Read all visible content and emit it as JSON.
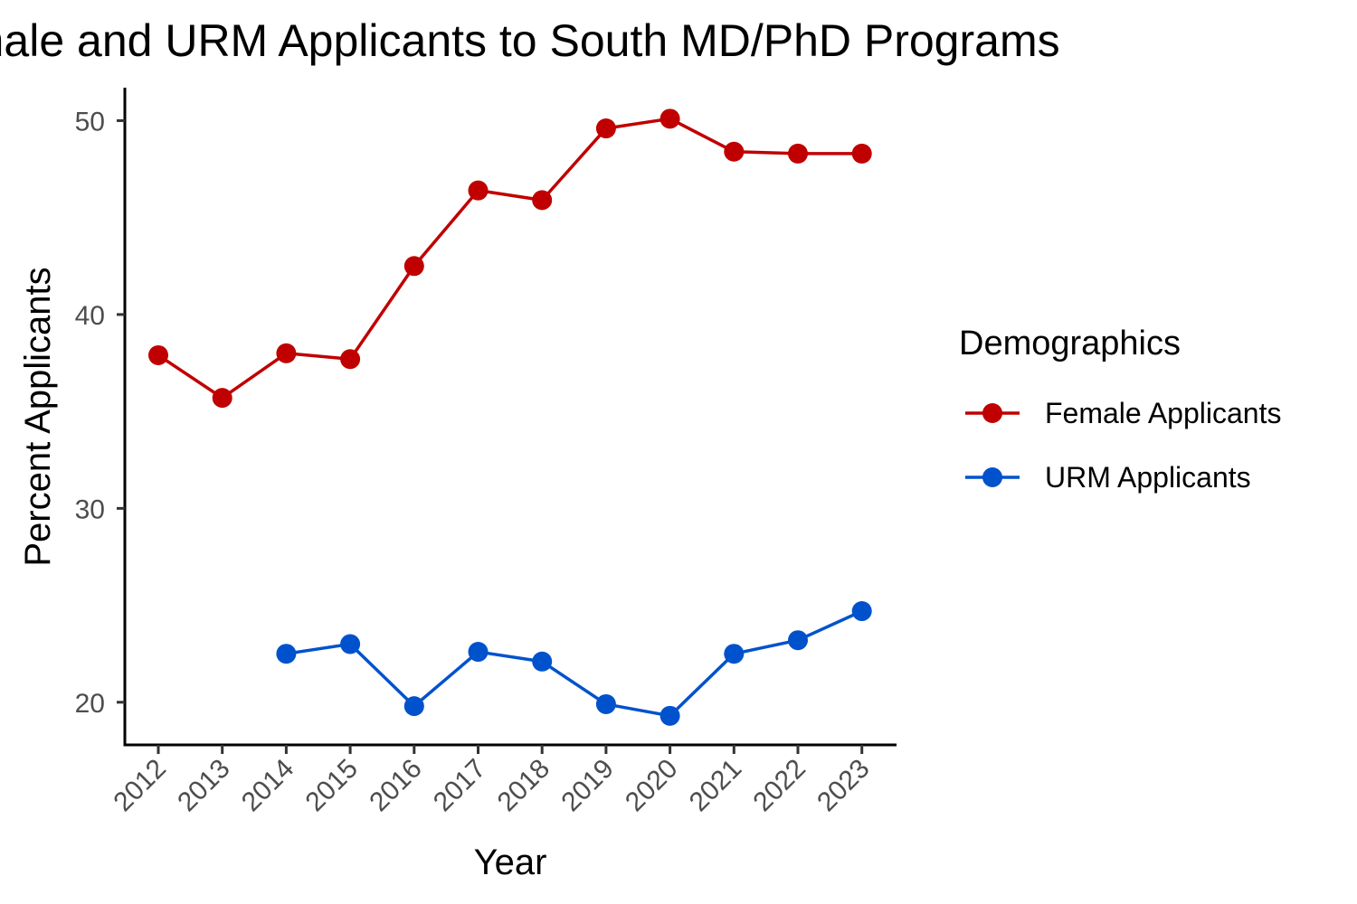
{
  "chart_data": {
    "type": "line",
    "title": "Female and URM Applicants to South MD/PhD Programs",
    "xlabel": "Year",
    "ylabel": "Percent Applicants",
    "x": [
      "2012",
      "2013",
      "2014",
      "2015",
      "2016",
      "2017",
      "2018",
      "2019",
      "2020",
      "2021",
      "2022",
      "2023"
    ],
    "ylim": [
      17.8,
      51.7
    ],
    "yticks": [
      20,
      30,
      40,
      50
    ],
    "grid": false,
    "legend": {
      "title": "Demographics",
      "position": "right"
    },
    "series": [
      {
        "name": "Female Applicants",
        "color": "#c00000",
        "values": [
          37.9,
          35.7,
          38.0,
          37.7,
          42.5,
          46.4,
          45.9,
          49.6,
          50.1,
          48.4,
          48.3,
          48.3
        ]
      },
      {
        "name": "URM Applicants",
        "color": "#0052cc",
        "values": [
          null,
          null,
          22.5,
          23.0,
          19.8,
          22.6,
          22.1,
          19.9,
          19.3,
          22.5,
          23.2,
          24.7
        ]
      }
    ]
  }
}
